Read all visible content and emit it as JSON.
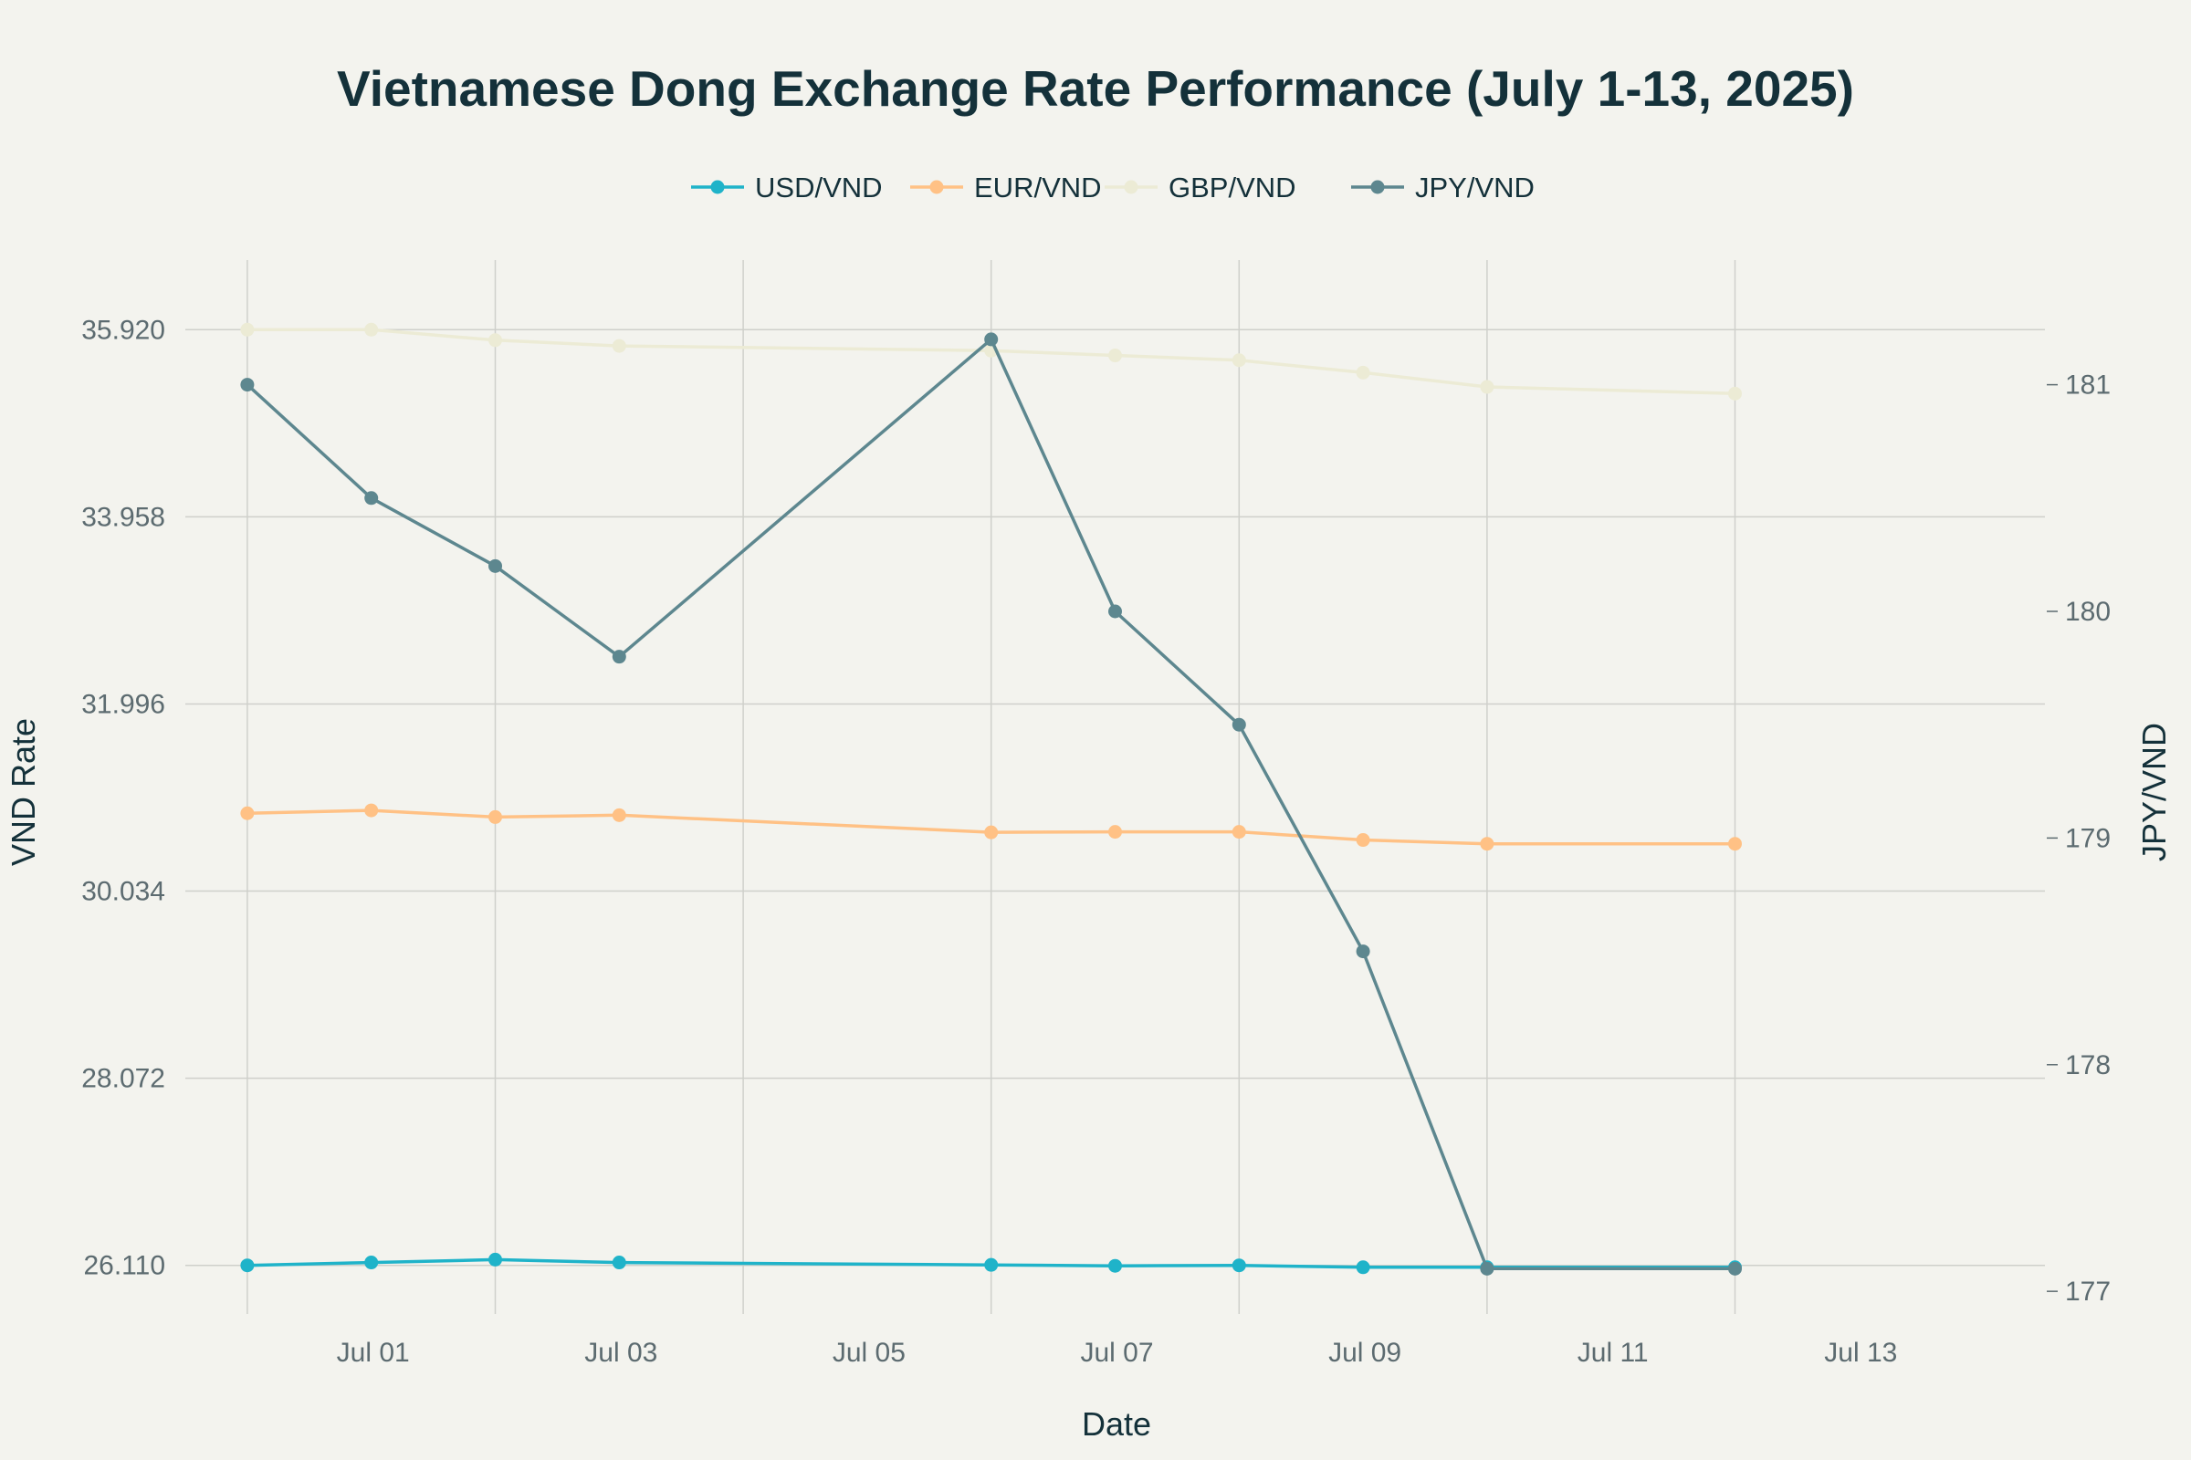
{
  "chart_data": {
    "type": "line",
    "title": "Vietnamese Dong Exchange Rate Performance (July 1-13, 2025)",
    "xlabel": "Date",
    "ylabel": "VND Rate",
    "y2label": "JPY/VND",
    "x": [
      "2025-06-30",
      "2025-07-01",
      "2025-07-02",
      "2025-07-03",
      "2025-07-06",
      "2025-07-07",
      "2025-07-08",
      "2025-07-09",
      "2025-07-10",
      "2025-07-12"
    ],
    "xticks": [
      "Jul 01",
      "Jul 03",
      "Jul 05",
      "Jul 07",
      "Jul 09",
      "Jul 11",
      "Jul 13"
    ],
    "yticks": [
      "26.110",
      "28.072",
      "30.034",
      "31.996",
      "33.958",
      "35.920"
    ],
    "y2ticks": [
      "177",
      "178",
      "179",
      "180",
      "181"
    ],
    "ylim": [
      25600,
      36650
    ],
    "y2lim": [
      176.9,
      181.55
    ],
    "grid": true,
    "legend_position": "top-center",
    "series": [
      {
        "name": "USD/VND",
        "axis": "left",
        "color": "#1fb3c9",
        "values": [
          26110,
          26140,
          26170,
          26140,
          26115,
          26105,
          26110,
          26090,
          26090,
          26090
        ]
      },
      {
        "name": "EUR/VND",
        "axis": "left",
        "color": "#ffc185",
        "values": [
          30850,
          30880,
          30810,
          30830,
          30650,
          30655,
          30655,
          30570,
          30530,
          30530
        ]
      },
      {
        "name": "GBP/VND",
        "axis": "left",
        "color": "#ecebd5",
        "values": [
          35920,
          35920,
          35810,
          35750,
          35700,
          35650,
          35600,
          35470,
          35320,
          35250
        ]
      },
      {
        "name": "JPY/VND",
        "axis": "right",
        "color": "#5d878f",
        "values": [
          181.0,
          180.5,
          180.2,
          179.8,
          181.2,
          180.0,
          179.5,
          178.5,
          177.1,
          177.1
        ]
      }
    ]
  }
}
